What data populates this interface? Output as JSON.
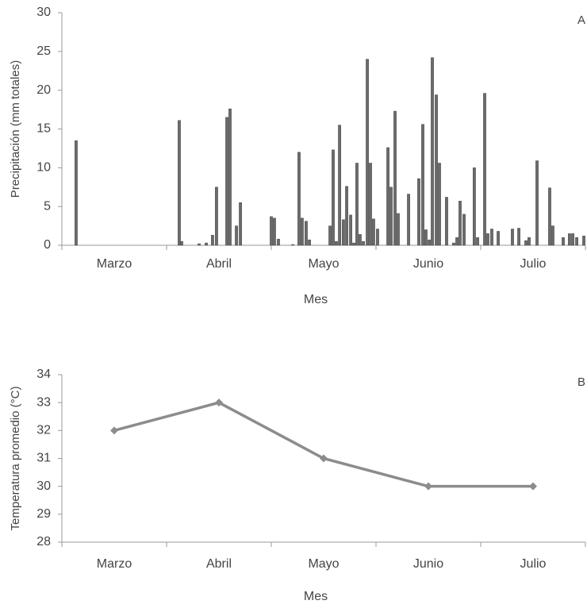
{
  "chart_data": [
    {
      "type": "bar",
      "annotation": "A",
      "xlabel": "Mes",
      "ylabel": "Precipitación (mm totales)",
      "color": "#6b6b6b",
      "x": [
        0.136,
        1.121,
        1.144,
        1.311,
        1.379,
        1.439,
        1.477,
        1.576,
        1.606,
        1.667,
        1.705,
        2.0,
        2.03,
        2.068,
        2.205,
        2.265,
        2.295,
        2.333,
        2.364,
        2.561,
        2.591,
        2.621,
        2.652,
        2.689,
        2.72,
        2.758,
        2.788,
        2.818,
        2.848,
        2.879,
        2.917,
        2.947,
        2.977,
        3.015,
        3.114,
        3.144,
        3.182,
        3.212,
        3.311,
        3.409,
        3.447,
        3.477,
        3.508,
        3.538,
        3.576,
        3.606,
        3.674,
        3.742,
        3.773,
        3.803,
        3.841,
        3.939,
        3.97,
        4.038,
        4.068,
        4.106,
        4.167,
        4.303,
        4.364,
        4.432,
        4.462,
        4.538,
        4.659,
        4.689,
        4.788,
        4.848,
        4.879,
        4.917,
        4.985
      ],
      "values": [
        13.5,
        16.1,
        0.5,
        0.2,
        0.3,
        1.3,
        7.5,
        16.5,
        17.6,
        2.5,
        5.5,
        3.7,
        3.5,
        0.8,
        0.1,
        12,
        3.5,
        3.1,
        0.7,
        2.5,
        12.3,
        0.5,
        15.5,
        3.3,
        7.6,
        3.9,
        0.3,
        10.6,
        1.4,
        0.5,
        24,
        10.6,
        3.4,
        2.1,
        12.6,
        7.5,
        17.3,
        4.1,
        6.6,
        8.6,
        15.6,
        2,
        0.7,
        24.2,
        19.4,
        10.6,
        6.2,
        0.3,
        1,
        5.7,
        4,
        10,
        1,
        19.6,
        1.5,
        2.1,
        1.8,
        2.1,
        2.2,
        0.6,
        1,
        10.9,
        7.4,
        2.5,
        1,
        1.5,
        1.5,
        1,
        1.2
      ],
      "xlim": [
        0,
        5
      ],
      "xticks": [
        {
          "value": 0.5,
          "label": "Marzo"
        },
        {
          "value": 1.5,
          "label": "Abril"
        },
        {
          "value": 2.5,
          "label": "Mayo"
        },
        {
          "value": 3.5,
          "label": "Junio"
        },
        {
          "value": 4.5,
          "label": "Julio"
        }
      ],
      "xminorticks": [
        0,
        1,
        2,
        3,
        4,
        5
      ],
      "ylim": [
        0,
        30
      ],
      "yticks": [
        0,
        5,
        10,
        15,
        20,
        25,
        30
      ]
    },
    {
      "type": "line",
      "annotation": "B",
      "xlabel": "Mes",
      "ylabel": "Temperatura promedio (°C)",
      "color": "#8c8c8c",
      "categories": [
        "Marzo",
        "Abril",
        "Mayo",
        "Junio",
        "Julio"
      ],
      "values": [
        32,
        33,
        31,
        30,
        30
      ],
      "ylim": [
        28,
        34
      ],
      "yticks": [
        28,
        29,
        30,
        31,
        32,
        33,
        34
      ]
    }
  ]
}
